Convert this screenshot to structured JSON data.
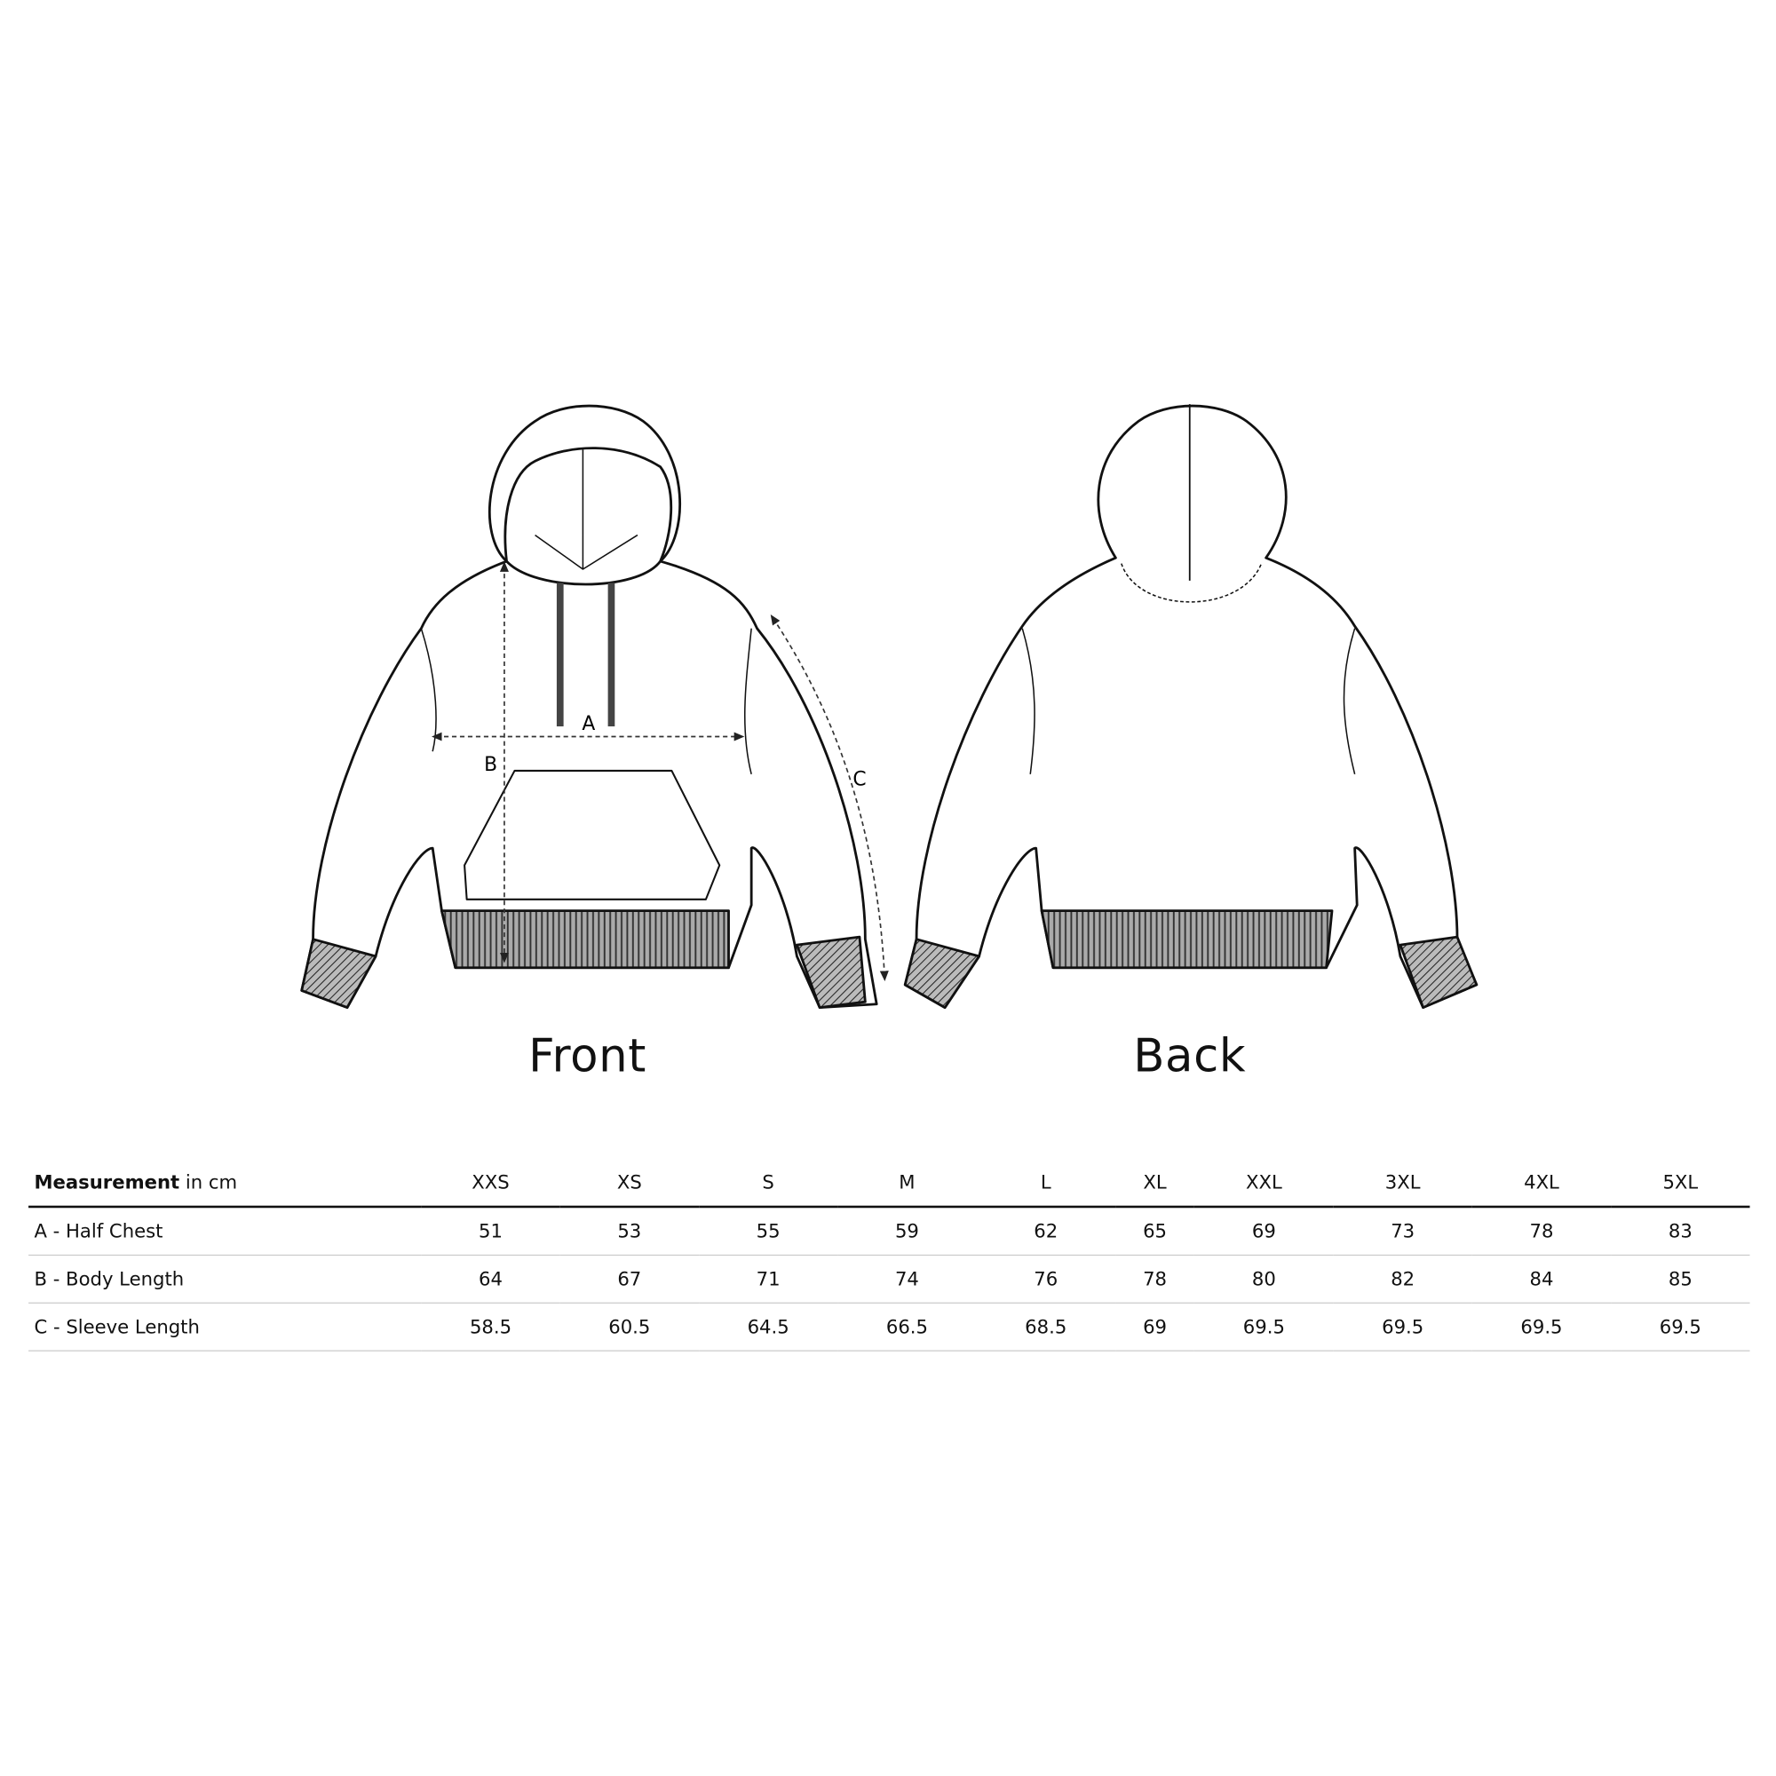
{
  "views": {
    "front_label": "Front",
    "back_label": "Back"
  },
  "dimension_labels": {
    "a": "A",
    "b": "B",
    "c": "C"
  },
  "table": {
    "header_bold": "Measurement",
    "header_unit": " in cm",
    "sizes": [
      "XXS",
      "XS",
      "S",
      "M",
      "L",
      "XL",
      "XXL",
      "3XL",
      "4XL",
      "5XL"
    ],
    "rows": [
      {
        "label": "A - Half Chest",
        "values": [
          "51",
          "53",
          "55",
          "59",
          "62",
          "65",
          "69",
          "73",
          "78",
          "83"
        ]
      },
      {
        "label": "B - Body Length",
        "values": [
          "64",
          "67",
          "71",
          "74",
          "76",
          "78",
          "80",
          "82",
          "84",
          "85"
        ]
      },
      {
        "label": "C - Sleeve Length",
        "values": [
          "58.5",
          "60.5",
          "64.5",
          "66.5",
          "68.5",
          "69",
          "69.5",
          "69.5",
          "69.5",
          "69.5"
        ]
      }
    ]
  }
}
